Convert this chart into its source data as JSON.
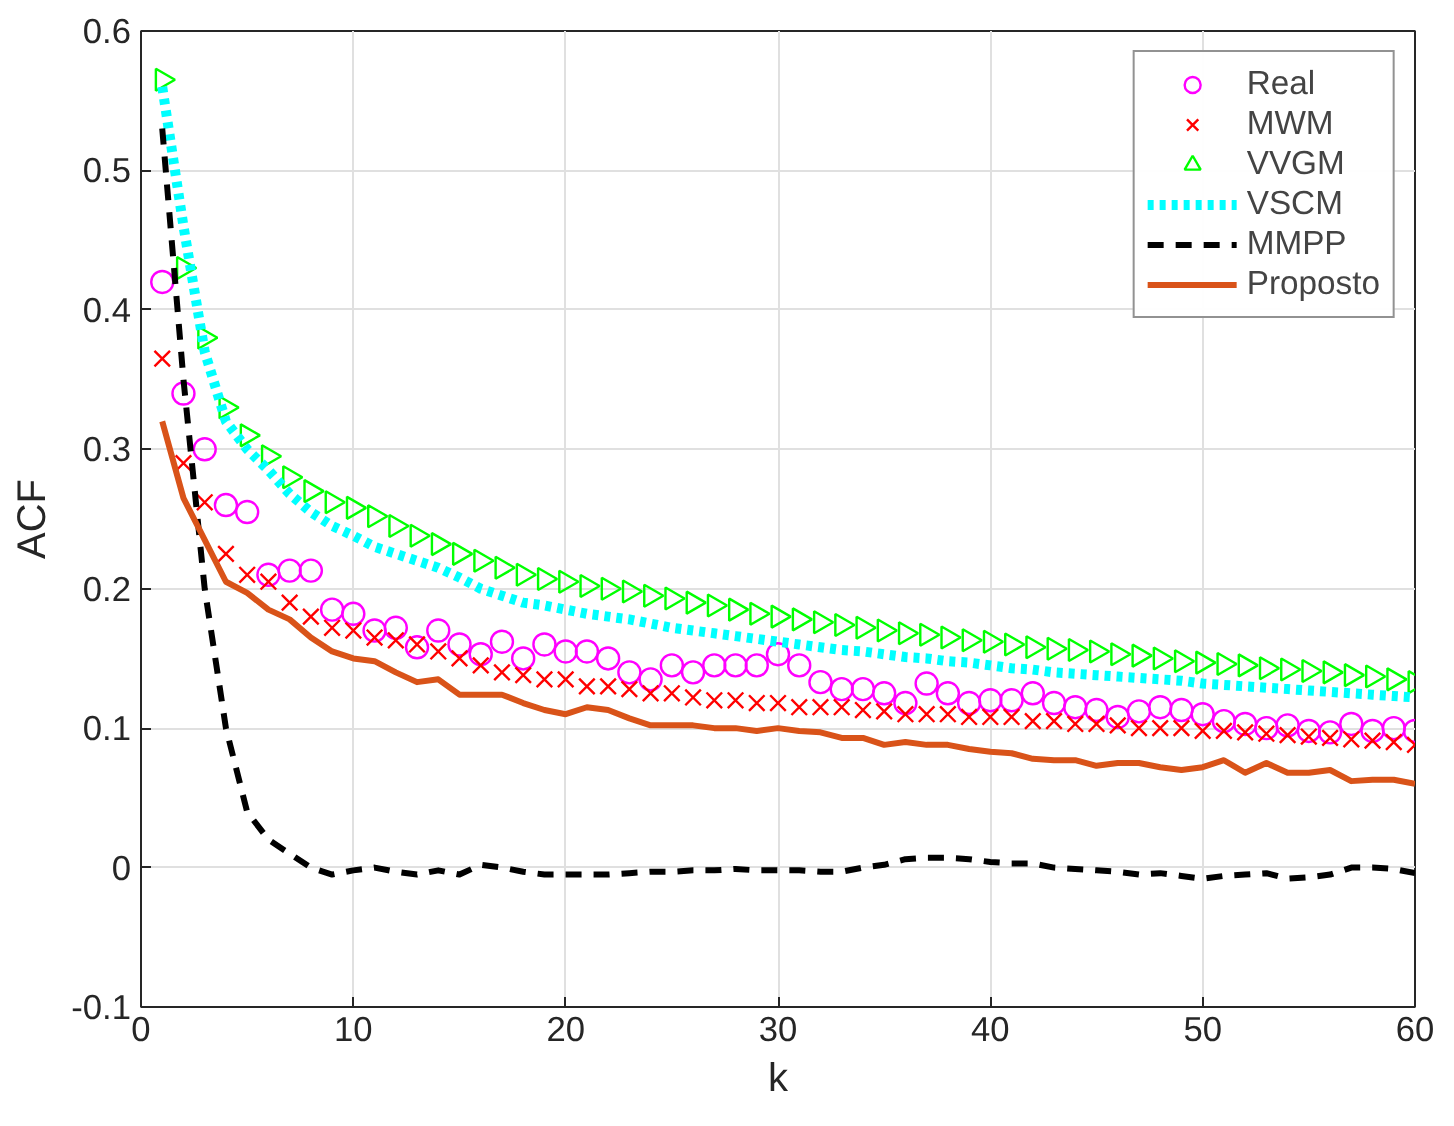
{
  "chart_data": {
    "type": "line",
    "xlabel": "k",
    "ylabel": "ACF",
    "x": [
      1,
      2,
      3,
      4,
      5,
      6,
      7,
      8,
      9,
      10,
      11,
      12,
      13,
      14,
      15,
      16,
      17,
      18,
      19,
      20,
      21,
      22,
      23,
      24,
      25,
      26,
      27,
      28,
      29,
      30,
      31,
      32,
      33,
      34,
      35,
      36,
      37,
      38,
      39,
      40,
      41,
      42,
      43,
      44,
      45,
      46,
      47,
      48,
      49,
      50,
      51,
      52,
      53,
      54,
      55,
      56,
      57,
      58,
      59,
      60
    ],
    "xlim": [
      0,
      60
    ],
    "ylim": [
      -0.1,
      0.6
    ],
    "xticks": [
      0,
      10,
      20,
      30,
      40,
      50,
      60
    ],
    "yticks": [
      {
        "value": -0.1,
        "label": "-0.1"
      },
      0,
      {
        "value": 0.1,
        "label": "0.1"
      },
      {
        "value": 0.2,
        "label": "0.2"
      },
      {
        "value": 0.3,
        "label": "0.3"
      },
      {
        "value": 0.4,
        "label": "0.4"
      },
      {
        "value": 0.5,
        "label": "0.5"
      },
      {
        "value": 0.6,
        "label": "0.6"
      }
    ],
    "grid": true,
    "legend": "top right",
    "series": [
      {
        "name": "Real",
        "type": "scatter",
        "marker": "circle",
        "color": "#ff00ff",
        "values": [
          0.42,
          0.34,
          0.3,
          0.26,
          0.255,
          0.21,
          0.213,
          0.213,
          0.185,
          0.182,
          0.17,
          0.172,
          0.158,
          0.17,
          0.16,
          0.153,
          0.162,
          0.15,
          0.16,
          0.155,
          0.155,
          0.15,
          0.14,
          0.135,
          0.145,
          0.14,
          0.145,
          0.145,
          0.145,
          0.153,
          0.145,
          0.133,
          0.128,
          0.128,
          0.125,
          0.118,
          0.132,
          0.125,
          0.118,
          0.12,
          0.12,
          0.125,
          0.118,
          0.115,
          0.113,
          0.108,
          0.112,
          0.115,
          0.113,
          0.11,
          0.105,
          0.103,
          0.1,
          0.102,
          0.098,
          0.097,
          0.103,
          0.098,
          0.1,
          0.098
        ]
      },
      {
        "name": "MWM",
        "type": "scatter",
        "marker": "cross",
        "color": "#ff0000",
        "values": [
          0.365,
          0.29,
          0.262,
          0.225,
          0.21,
          0.205,
          0.19,
          0.18,
          0.172,
          0.17,
          0.165,
          0.163,
          0.16,
          0.155,
          0.15,
          0.145,
          0.14,
          0.138,
          0.135,
          0.135,
          0.13,
          0.13,
          0.128,
          0.125,
          0.125,
          0.122,
          0.12,
          0.12,
          0.118,
          0.118,
          0.115,
          0.115,
          0.115,
          0.113,
          0.112,
          0.11,
          0.11,
          0.11,
          0.108,
          0.108,
          0.108,
          0.105,
          0.105,
          0.103,
          0.103,
          0.102,
          0.1,
          0.1,
          0.1,
          0.098,
          0.098,
          0.097,
          0.096,
          0.095,
          0.094,
          0.093,
          0.092,
          0.091,
          0.09,
          0.088
        ]
      },
      {
        "name": "VVGM",
        "type": "scatter",
        "marker": "triangle",
        "color": "#00ff00",
        "values": [
          0.565,
          0.43,
          0.38,
          0.33,
          0.31,
          0.295,
          0.28,
          0.27,
          0.262,
          0.258,
          0.252,
          0.245,
          0.238,
          0.232,
          0.225,
          0.22,
          0.215,
          0.21,
          0.207,
          0.205,
          0.202,
          0.2,
          0.198,
          0.195,
          0.193,
          0.19,
          0.188,
          0.185,
          0.182,
          0.18,
          0.178,
          0.176,
          0.174,
          0.172,
          0.17,
          0.168,
          0.167,
          0.165,
          0.163,
          0.162,
          0.16,
          0.158,
          0.157,
          0.156,
          0.155,
          0.153,
          0.152,
          0.15,
          0.148,
          0.147,
          0.146,
          0.145,
          0.143,
          0.142,
          0.141,
          0.14,
          0.138,
          0.137,
          0.135,
          0.133
        ]
      },
      {
        "name": "VSCM",
        "line_style": "dotted",
        "color": "#00ffff",
        "values": [
          0.56,
          0.46,
          0.37,
          0.32,
          0.3,
          0.285,
          0.268,
          0.255,
          0.245,
          0.238,
          0.23,
          0.225,
          0.22,
          0.215,
          0.208,
          0.2,
          0.195,
          0.19,
          0.188,
          0.185,
          0.182,
          0.18,
          0.178,
          0.175,
          0.172,
          0.17,
          0.168,
          0.166,
          0.164,
          0.162,
          0.16,
          0.158,
          0.156,
          0.155,
          0.153,
          0.151,
          0.15,
          0.148,
          0.147,
          0.145,
          0.143,
          0.142,
          0.14,
          0.139,
          0.138,
          0.137,
          0.136,
          0.135,
          0.134,
          0.132,
          0.131,
          0.13,
          0.129,
          0.128,
          0.127,
          0.126,
          0.125,
          0.124,
          0.123,
          0.122
        ]
      },
      {
        "name": "MMPP",
        "line_style": "dashed",
        "color": "#000000",
        "values": [
          0.53,
          0.35,
          0.2,
          0.1,
          0.04,
          0.02,
          0.01,
          0.0,
          -0.005,
          -0.002,
          0.0,
          -0.003,
          -0.005,
          -0.002,
          -0.005,
          0.002,
          0.0,
          -0.003,
          -0.005,
          -0.005,
          -0.005,
          -0.005,
          -0.004,
          -0.003,
          -0.003,
          -0.002,
          -0.002,
          -0.001,
          -0.002,
          -0.002,
          -0.002,
          -0.003,
          -0.003,
          0.0,
          0.002,
          0.006,
          0.007,
          0.007,
          0.006,
          0.004,
          0.003,
          0.003,
          0.0,
          -0.001,
          -0.002,
          -0.003,
          -0.005,
          -0.004,
          -0.006,
          -0.008,
          -0.006,
          -0.005,
          -0.004,
          -0.008,
          -0.007,
          -0.005,
          0.0,
          0.0,
          -0.001,
          -0.004
        ]
      },
      {
        "name": "Proposto",
        "line_style": "solid",
        "color": "#d95319",
        "values": [
          0.32,
          0.265,
          0.235,
          0.205,
          0.197,
          0.185,
          0.178,
          0.165,
          0.155,
          0.15,
          0.148,
          0.14,
          0.133,
          0.135,
          0.124,
          0.124,
          0.124,
          0.118,
          0.113,
          0.11,
          0.115,
          0.113,
          0.107,
          0.102,
          0.102,
          0.102,
          0.1,
          0.1,
          0.098,
          0.1,
          0.098,
          0.097,
          0.093,
          0.093,
          0.088,
          0.09,
          0.088,
          0.088,
          0.085,
          0.083,
          0.082,
          0.078,
          0.077,
          0.077,
          0.073,
          0.075,
          0.075,
          0.072,
          0.07,
          0.072,
          0.077,
          0.068,
          0.075,
          0.068,
          0.068,
          0.07,
          0.062,
          0.063,
          0.063,
          0.06
        ]
      }
    ]
  }
}
